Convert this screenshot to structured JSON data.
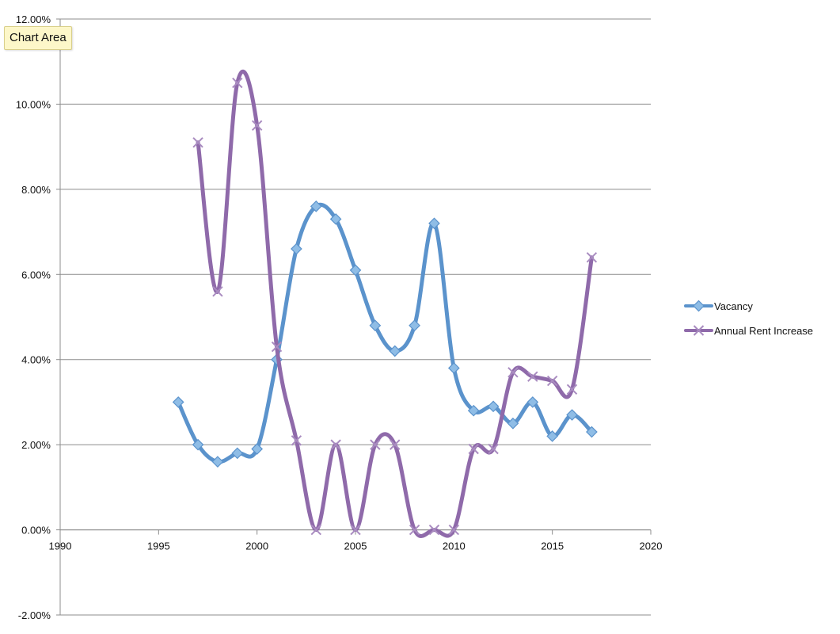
{
  "tooltip": {
    "label": "Chart Area"
  },
  "chart_data": {
    "type": "scatter",
    "smooth_lines": true,
    "title": "",
    "xlabel": "",
    "ylabel": "",
    "xlim": [
      1990,
      2020
    ],
    "ylim": [
      -0.02,
      0.12
    ],
    "x_ticks": [
      1990,
      1995,
      2000,
      2005,
      2010,
      2015,
      2020
    ],
    "x_tick_labels": [
      "1990",
      "1995",
      "2000",
      "2005",
      "2010",
      "2015",
      "2020"
    ],
    "y_ticks": [
      -0.02,
      0,
      0.02,
      0.04,
      0.06,
      0.08,
      0.1,
      0.12
    ],
    "y_tick_labels": [
      "-2.00%",
      "0.00%",
      "2.00%",
      "4.00%",
      "6.00%",
      "8.00%",
      "10.00%",
      "12.00%"
    ],
    "grid": {
      "horizontal": true,
      "vertical": false
    },
    "legend_position": "right",
    "series": [
      {
        "name": "Vacancy",
        "color": "#5b93cc",
        "marker": "diamond",
        "x": [
          1996,
          1997,
          1998,
          1999,
          2000,
          2001,
          2002,
          2003,
          2004,
          2005,
          2006,
          2007,
          2008,
          2009,
          2010,
          2011,
          2012,
          2013,
          2014,
          2015,
          2016,
          2017
        ],
        "y": [
          0.03,
          0.02,
          0.016,
          0.018,
          0.019,
          0.04,
          0.066,
          0.076,
          0.073,
          0.061,
          0.048,
          0.042,
          0.048,
          0.072,
          0.038,
          0.028,
          0.029,
          0.025,
          0.03,
          0.022,
          0.027,
          0.023
        ]
      },
      {
        "name": "Annual Rent Increase",
        "color": "#8f6aaa",
        "marker": "x",
        "x": [
          1997,
          1998,
          1999,
          2000,
          2001,
          2002,
          2003,
          2004,
          2005,
          2006,
          2007,
          2008,
          2009,
          2010,
          2011,
          2012,
          2013,
          2014,
          2015,
          2016,
          2017
        ],
        "y": [
          0.091,
          0.056,
          0.105,
          0.095,
          0.043,
          0.021,
          0.0,
          0.02,
          0.0,
          0.02,
          0.02,
          0.0,
          0.0,
          0.0,
          0.019,
          0.019,
          0.037,
          0.036,
          0.035,
          0.033,
          0.064
        ]
      }
    ]
  }
}
